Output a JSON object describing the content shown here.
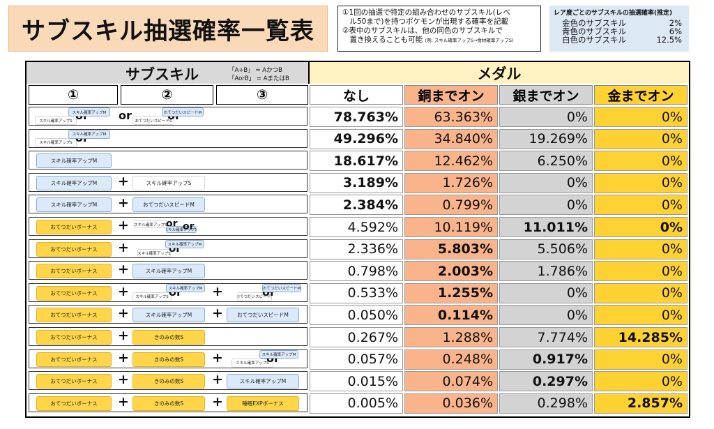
{
  "title": "サブスキル抽選確率一覧表",
  "notes": {
    "line1": "①1回の抽選で特定の組み合わせのサブスキル(レベ",
    "line2": "　ル50まで)を持つポケモンが出現する確率を記載",
    "line3": "②表中のサブスキルは、他の同色のサブスキルで",
    "line4": "　置き換えることも可能",
    "line4_small": "(例: スキル確率アップS→食材確率アップS)"
  },
  "rarity": {
    "heading": "レア度ごとのサブスキルの抽選確率(推定)",
    "rows": [
      {
        "label": "金色のサブスキル",
        "value": "2%"
      },
      {
        "label": "青色のサブスキル",
        "value": "6%"
      },
      {
        "label": "白色のサブスキル",
        "value": "12.5%"
      }
    ]
  },
  "table": {
    "subskill_header": "サブスキル",
    "legend1": "「A+B」 = AかつB",
    "legend2": "「AorB」 = AまたはB",
    "medal_header": "メダル",
    "col1": "①",
    "col2": "②",
    "col3": "③",
    "medals": [
      "なし",
      "銅までオン",
      "銀までオン",
      "金までオン"
    ],
    "colors": {
      "none": "#ffffff",
      "bronze": "#f9b48c",
      "silver": "#d3d3d3",
      "gold": "#ffd233",
      "medal_header": "#fff2c2"
    },
    "rows": [
      {
        "values": [
          "78.763%",
          "63.363%",
          "0%",
          "0%"
        ],
        "bold": [
          true,
          false,
          false,
          false
        ]
      },
      {
        "values": [
          "49.296%",
          "34.840%",
          "19.269%",
          "0%"
        ],
        "bold": [
          true,
          false,
          false,
          false
        ]
      },
      {
        "values": [
          "18.617%",
          "12.462%",
          "6.250%",
          "0%"
        ],
        "bold": [
          true,
          false,
          false,
          false
        ]
      },
      {
        "values": [
          "3.189%",
          "1.726%",
          "0%",
          "0%"
        ],
        "bold": [
          true,
          false,
          false,
          false
        ]
      },
      {
        "values": [
          "2.384%",
          "0.799%",
          "0%",
          "0%"
        ],
        "bold": [
          true,
          false,
          false,
          false
        ]
      },
      {
        "values": [
          "4.592%",
          "10.119%",
          "11.011%",
          "0%"
        ],
        "bold": [
          false,
          false,
          true,
          true
        ]
      },
      {
        "values": [
          "2.336%",
          "5.803%",
          "5.506%",
          "0%"
        ],
        "bold": [
          false,
          true,
          false,
          false
        ]
      },
      {
        "values": [
          "0.798%",
          "2.003%",
          "1.786%",
          "0%"
        ],
        "bold": [
          false,
          true,
          false,
          false
        ]
      },
      {
        "values": [
          "0.533%",
          "1.255%",
          "0%",
          "0%"
        ],
        "bold": [
          false,
          true,
          false,
          false
        ]
      },
      {
        "values": [
          "0.050%",
          "0.114%",
          "0%",
          "0%"
        ],
        "bold": [
          false,
          true,
          false,
          false
        ]
      },
      {
        "values": [
          "0.267%",
          "1.288%",
          "7.774%",
          "14.285%"
        ],
        "bold": [
          false,
          false,
          false,
          true
        ]
      },
      {
        "values": [
          "0.057%",
          "0.248%",
          "0.917%",
          "0%"
        ],
        "bold": [
          false,
          false,
          true,
          false
        ]
      },
      {
        "values": [
          "0.015%",
          "0.074%",
          "0.297%",
          "0%"
        ],
        "bold": [
          false,
          false,
          true,
          false
        ]
      },
      {
        "values": [
          "0.005%",
          "0.036%",
          "0.298%",
          "2.857%"
        ],
        "bold": [
          false,
          false,
          false,
          true
        ]
      }
    ]
  },
  "skills": {
    "skill_m": "スキル確率アップM",
    "skill_s": "スキル確率アップS",
    "speed_m": "おてつだいスピードM",
    "speed_s": "おてつだいスピードS",
    "bonus": "おてつだいボーナス",
    "berry": "きのみの数S",
    "sleep_exp": "睡眠EXPボーナス",
    "or": "or",
    "plus": "+"
  }
}
